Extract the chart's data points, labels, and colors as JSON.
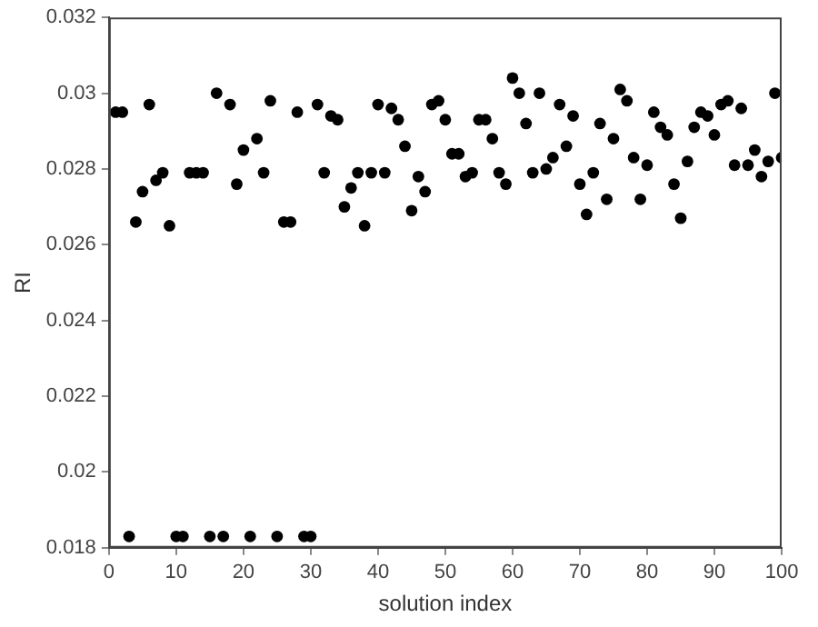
{
  "chart_data": {
    "type": "scatter",
    "xlabel": "solution index",
    "ylabel": "RI",
    "marker": "circle",
    "grid": false,
    "legend": false,
    "x": [
      1,
      2,
      3,
      4,
      5,
      6,
      7,
      8,
      9,
      10,
      11,
      12,
      13,
      14,
      15,
      16,
      17,
      18,
      19,
      20,
      21,
      22,
      23,
      24,
      25,
      26,
      27,
      28,
      29,
      30,
      31,
      32,
      33,
      34,
      35,
      36,
      37,
      38,
      39,
      40,
      41,
      42,
      43,
      44,
      45,
      46,
      47,
      48,
      49,
      50,
      51,
      52,
      53,
      54,
      55,
      56,
      57,
      58,
      59,
      60,
      61,
      62,
      63,
      64,
      65,
      66,
      67,
      68,
      69,
      70,
      71,
      72,
      73,
      74,
      75,
      76,
      77,
      78,
      79,
      80,
      81,
      82,
      83,
      84,
      85,
      86,
      87,
      88,
      89,
      90,
      91,
      92,
      93,
      94,
      95,
      96,
      97,
      98,
      99,
      100
    ],
    "series": [
      {
        "color": "#000000",
        "values": [
          0.0295,
          0.0295,
          0.0183,
          0.0266,
          0.0274,
          0.0297,
          0.0277,
          0.0279,
          0.0265,
          0.0183,
          0.0183,
          0.0279,
          0.0279,
          0.0279,
          0.0183,
          0.03,
          0.0183,
          0.0297,
          0.0276,
          0.0285,
          0.0183,
          0.0288,
          0.0279,
          0.0298,
          0.0183,
          0.0266,
          0.0266,
          0.0295,
          0.0183,
          0.0183,
          0.0297,
          0.0279,
          0.0294,
          0.0293,
          0.027,
          0.0275,
          0.0279,
          0.0265,
          0.0279,
          0.0297,
          0.0279,
          0.0296,
          0.0293,
          0.0286,
          0.0269,
          0.0278,
          0.0274,
          0.0297,
          0.0298,
          0.0293,
          0.0284,
          0.0284,
          0.0278,
          0.0279,
          0.0293,
          0.0293,
          0.0288,
          0.0279,
          0.0276,
          0.0304,
          0.03,
          0.0292,
          0.0279,
          0.03,
          0.028,
          0.0283,
          0.0297,
          0.0286,
          0.0294,
          0.0276,
          0.0268,
          0.0279,
          0.0292,
          0.0272,
          0.0288,
          0.0301,
          0.0298,
          0.0283,
          0.0272,
          0.0281,
          0.0295,
          0.0291,
          0.0289,
          0.0276,
          0.0267,
          0.0282,
          0.0291,
          0.0295,
          0.0294,
          0.0289,
          0.0297,
          0.0298,
          0.0281,
          0.0296,
          0.0281,
          0.0285,
          0.0278,
          0.0282,
          0.03,
          0.0283
        ]
      }
    ],
    "xlim": [
      0,
      100
    ],
    "xticks": [
      0,
      10,
      20,
      30,
      40,
      50,
      60,
      70,
      80,
      90,
      100
    ],
    "ylim": [
      0.018,
      0.032
    ],
    "yticks": [
      0.018,
      0.02,
      0.022,
      0.024,
      0.026,
      0.028,
      0.03,
      0.032
    ]
  }
}
